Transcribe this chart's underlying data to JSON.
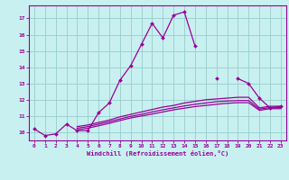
{
  "xlabel": "Windchill (Refroidissement éolien,°C)",
  "bg_color": "#c8f0f0",
  "line_color": "#990099",
  "grid_color": "#99cccc",
  "xlim": [
    -0.5,
    23.5
  ],
  "ylim": [
    9.5,
    17.8
  ],
  "yticks": [
    10,
    11,
    12,
    13,
    14,
    15,
    16,
    17
  ],
  "xticks": [
    0,
    1,
    2,
    3,
    4,
    5,
    6,
    7,
    8,
    9,
    10,
    11,
    12,
    13,
    14,
    15,
    16,
    17,
    18,
    19,
    20,
    21,
    22,
    23
  ],
  "series": [
    {
      "x": [
        0,
        1,
        2,
        3,
        4,
        5,
        6,
        7,
        8,
        9,
        10,
        11,
        12,
        13,
        14,
        15,
        16,
        17,
        18,
        19,
        20,
        21,
        22,
        23
      ],
      "y": [
        10.2,
        9.8,
        9.9,
        10.5,
        10.1,
        10.1,
        11.2,
        11.8,
        13.2,
        14.1,
        15.4,
        16.7,
        15.8,
        17.2,
        17.4,
        15.3,
        null,
        13.3,
        null,
        13.3,
        13.0,
        12.1,
        11.5,
        11.6
      ],
      "marker": true
    },
    {
      "x": [
        0,
        1,
        2,
        3,
        4,
        5,
        6,
        7,
        8,
        9,
        10,
        11,
        12,
        13,
        14,
        15,
        16,
        17,
        18,
        19,
        20,
        21,
        22,
        23
      ],
      "y": [
        null,
        null,
        null,
        null,
        10.35,
        10.45,
        10.6,
        10.75,
        10.95,
        11.1,
        11.25,
        11.4,
        11.55,
        11.65,
        11.8,
        11.9,
        12.0,
        12.05,
        12.1,
        12.15,
        12.15,
        11.5,
        11.6,
        11.6
      ],
      "marker": false
    },
    {
      "x": [
        0,
        1,
        2,
        3,
        4,
        5,
        6,
        7,
        8,
        9,
        10,
        11,
        12,
        13,
        14,
        15,
        16,
        17,
        18,
        19,
        20,
        21,
        22,
        23
      ],
      "y": [
        null,
        null,
        null,
        null,
        10.25,
        10.35,
        10.5,
        10.65,
        10.82,
        10.98,
        11.1,
        11.25,
        11.38,
        11.5,
        11.62,
        11.72,
        11.8,
        11.88,
        11.92,
        11.95,
        11.95,
        11.42,
        11.52,
        11.52
      ],
      "marker": false
    },
    {
      "x": [
        0,
        1,
        2,
        3,
        4,
        5,
        6,
        7,
        8,
        9,
        10,
        11,
        12,
        13,
        14,
        15,
        16,
        17,
        18,
        19,
        20,
        21,
        22,
        23
      ],
      "y": [
        null,
        null,
        null,
        null,
        10.15,
        10.25,
        10.4,
        10.55,
        10.72,
        10.88,
        11.0,
        11.12,
        11.25,
        11.38,
        11.48,
        11.58,
        11.65,
        11.72,
        11.78,
        11.82,
        11.82,
        11.35,
        11.45,
        11.45
      ],
      "marker": false
    }
  ]
}
